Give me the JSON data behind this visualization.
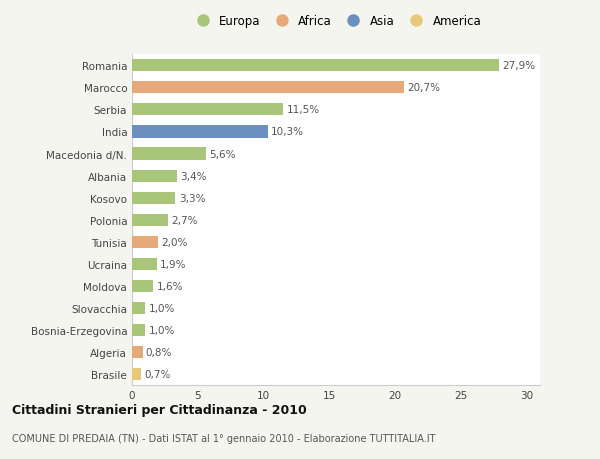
{
  "categories": [
    "Romania",
    "Marocco",
    "Serbia",
    "India",
    "Macedonia d/N.",
    "Albania",
    "Kosovo",
    "Polonia",
    "Tunisia",
    "Ucraina",
    "Moldova",
    "Slovacchia",
    "Bosnia-Erzegovina",
    "Algeria",
    "Brasile"
  ],
  "values": [
    27.9,
    20.7,
    11.5,
    10.3,
    5.6,
    3.4,
    3.3,
    2.7,
    2.0,
    1.9,
    1.6,
    1.0,
    1.0,
    0.8,
    0.7
  ],
  "labels": [
    "27,9%",
    "20,7%",
    "11,5%",
    "10,3%",
    "5,6%",
    "3,4%",
    "3,3%",
    "2,7%",
    "2,0%",
    "1,9%",
    "1,6%",
    "1,0%",
    "1,0%",
    "0,8%",
    "0,7%"
  ],
  "continents": [
    "Europa",
    "Africa",
    "Europa",
    "Asia",
    "Europa",
    "Europa",
    "Europa",
    "Europa",
    "Africa",
    "Europa",
    "Europa",
    "Europa",
    "Europa",
    "Africa",
    "America"
  ],
  "colors": {
    "Europa": "#a8c57a",
    "Africa": "#e8a97a",
    "Asia": "#6b8fbe",
    "America": "#e8c87a"
  },
  "legend_entries": [
    "Europa",
    "Africa",
    "Asia",
    "America"
  ],
  "title": "Cittadini Stranieri per Cittadinanza - 2010",
  "subtitle": "COMUNE DI PREDAIA (TN) - Dati ISTAT al 1° gennaio 2010 - Elaborazione TUTTITALIA.IT",
  "xlim": [
    0,
    31
  ],
  "xticks": [
    0,
    5,
    10,
    15,
    20,
    25,
    30
  ],
  "background_color": "#f5f5f0",
  "plot_bg_color": "#ffffff",
  "grid_color": "#ffffff",
  "bar_height": 0.55,
  "figsize": [
    6.0,
    4.6
  ],
  "dpi": 100,
  "label_fontsize": 7.5,
  "tick_fontsize": 7.5,
  "legend_fontsize": 8.5,
  "title_fontsize": 9,
  "subtitle_fontsize": 7
}
